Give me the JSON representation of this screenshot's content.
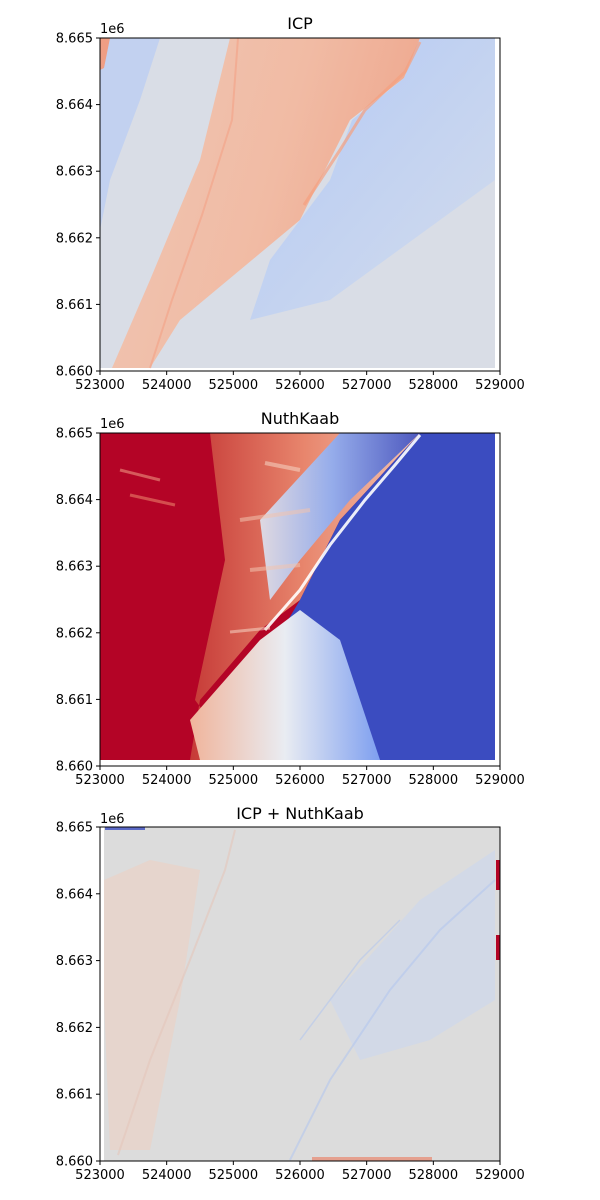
{
  "chart_data": [
    {
      "type": "heatmap",
      "title": "ICP",
      "colormap": "coolwarm",
      "xlim": [
        523000,
        529000
      ],
      "ylim": [
        8660000,
        8665000
      ],
      "x_ticks": [
        523000,
        524000,
        525000,
        526000,
        527000,
        528000,
        529000
      ],
      "x_tick_labels": [
        "523000",
        "524000",
        "525000",
        "526000",
        "527000",
        "528000",
        "529000"
      ],
      "y_ticks": [
        8660000,
        8661000,
        8662000,
        8663000,
        8664000,
        8665000
      ],
      "y_tick_labels": [
        "8.660",
        "8.661",
        "8.662",
        "8.663",
        "8.664",
        "8.665"
      ],
      "y_offset_label": "1e6"
    },
    {
      "type": "heatmap",
      "title": "NuthKaab",
      "colormap": "coolwarm",
      "xlim": [
        523000,
        529000
      ],
      "ylim": [
        8660000,
        8665000
      ],
      "x_ticks": [
        523000,
        524000,
        525000,
        526000,
        527000,
        528000,
        529000
      ],
      "x_tick_labels": [
        "523000",
        "524000",
        "525000",
        "526000",
        "527000",
        "528000",
        "529000"
      ],
      "y_ticks": [
        8660000,
        8661000,
        8662000,
        8663000,
        8664000,
        8665000
      ],
      "y_tick_labels": [
        "8.660",
        "8.661",
        "8.662",
        "8.663",
        "8.664",
        "8.665"
      ],
      "y_offset_label": "1e6"
    },
    {
      "type": "heatmap",
      "title": "ICP + NuthKaab",
      "colormap": "coolwarm",
      "xlim": [
        523000,
        529000
      ],
      "ylim": [
        8660000,
        8665000
      ],
      "x_ticks": [
        523000,
        524000,
        525000,
        526000,
        527000,
        528000,
        529000
      ],
      "x_tick_labels": [
        "523000",
        "524000",
        "525000",
        "526000",
        "527000",
        "528000",
        "529000"
      ],
      "y_ticks": [
        8660000,
        8661000,
        8662000,
        8663000,
        8664000,
        8665000
      ],
      "y_tick_labels": [
        "8.660",
        "8.661",
        "8.662",
        "8.663",
        "8.664",
        "8.665"
      ],
      "y_offset_label": "1e6"
    }
  ],
  "colors": {
    "neutral": "#dcdcdc",
    "warm_light": "#f2c4b0",
    "warm": "#e8866d",
    "warm_dark": "#b40426",
    "cool_light": "#c4d5f3",
    "cool": "#8caff7",
    "cool_dark": "#3b4cc0"
  }
}
